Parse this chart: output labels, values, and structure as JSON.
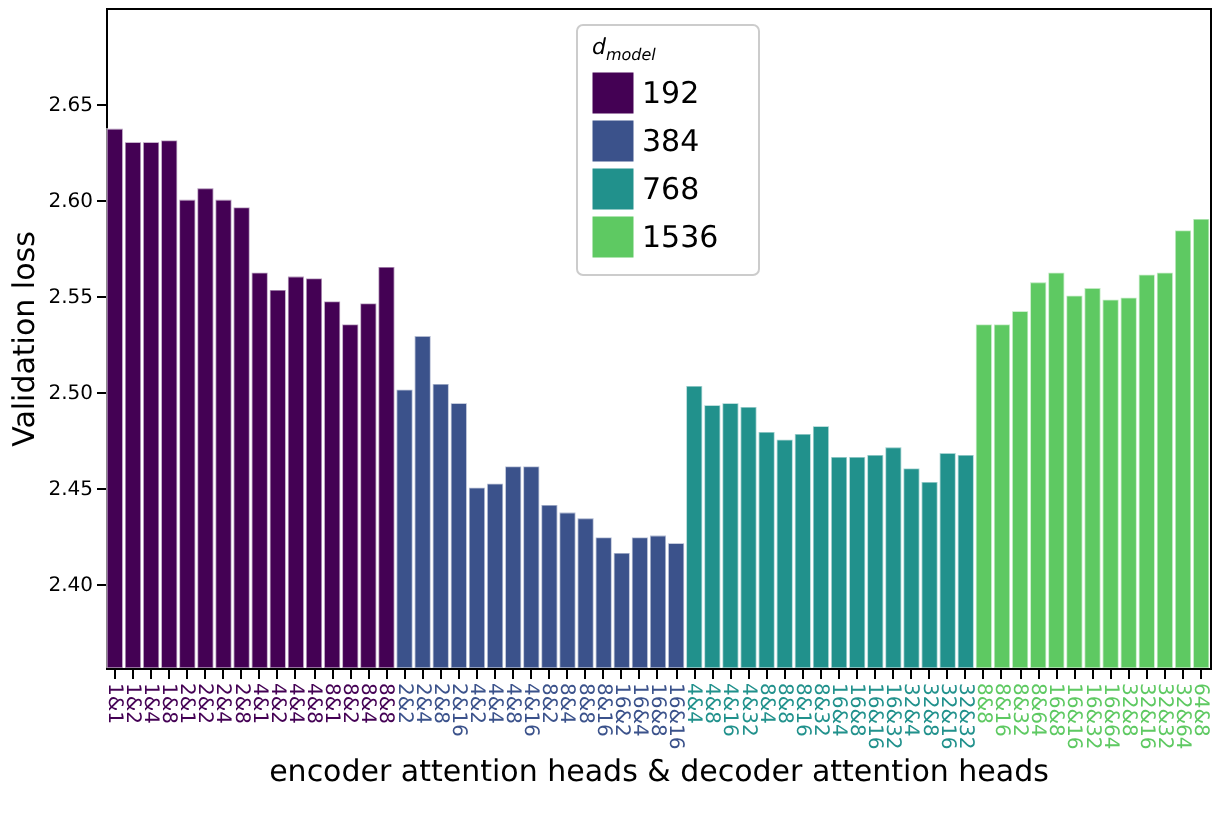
{
  "chart_data": {
    "type": "bar",
    "xlabel": "encoder attention heads & decoder attention heads",
    "ylabel": "Validation loss",
    "legend_title": "d$_{model}$",
    "categories": [
      "1&1",
      "1&2",
      "1&4",
      "1&8",
      "2&1",
      "2&2",
      "2&4",
      "2&8",
      "4&1",
      "4&2",
      "4&4",
      "4&8",
      "8&1",
      "8&2",
      "8&4",
      "8&8",
      "2&2",
      "2&4",
      "2&8",
      "2&16",
      "4&2",
      "4&4",
      "4&8",
      "4&16",
      "8&2",
      "8&4",
      "8&8",
      "8&16",
      "16&2",
      "16&4",
      "16&8",
      "16&16",
      "4&4",
      "4&8",
      "4&16",
      "4&32",
      "8&4",
      "8&8",
      "8&16",
      "8&32",
      "16&4",
      "16&8",
      "16&16",
      "16&32",
      "32&4",
      "32&8",
      "32&16",
      "32&32",
      "8&8",
      "8&16",
      "8&32",
      "8&64",
      "16&8",
      "16&16",
      "16&32",
      "16&64",
      "32&8",
      "32&16",
      "32&32",
      "32&64",
      "64&8"
    ],
    "series": [
      {
        "name": "192",
        "color": "#440154",
        "values": [
          2.637,
          2.63,
          2.63,
          2.631,
          2.6,
          2.606,
          2.6,
          2.596,
          2.562,
          2.553,
          2.56,
          2.559,
          2.547,
          2.535,
          2.546,
          2.565,
          null,
          null,
          null,
          null,
          null,
          null,
          null,
          null,
          null,
          null,
          null,
          null,
          null,
          null,
          null,
          null,
          null,
          null,
          null,
          null,
          null,
          null,
          null,
          null,
          null,
          null,
          null,
          null,
          null,
          null,
          null,
          null,
          null,
          null,
          null,
          null,
          null,
          null,
          null,
          null,
          null,
          null,
          null,
          null,
          null
        ]
      },
      {
        "name": "384",
        "color": "#3b528b",
        "values": [
          null,
          null,
          null,
          null,
          null,
          null,
          null,
          null,
          null,
          null,
          null,
          null,
          null,
          null,
          null,
          null,
          2.501,
          2.529,
          2.504,
          2.494,
          2.45,
          2.452,
          2.461,
          2.461,
          2.441,
          2.437,
          2.434,
          2.424,
          2.416,
          2.424,
          2.425,
          2.421,
          null,
          null,
          null,
          null,
          null,
          null,
          null,
          null,
          null,
          null,
          null,
          null,
          null,
          null,
          null,
          null,
          null,
          null,
          null,
          null,
          null,
          null,
          null,
          null,
          null,
          null,
          null,
          null,
          null
        ]
      },
      {
        "name": "768",
        "color": "#21918c",
        "values": [
          null,
          null,
          null,
          null,
          null,
          null,
          null,
          null,
          null,
          null,
          null,
          null,
          null,
          null,
          null,
          null,
          null,
          null,
          null,
          null,
          null,
          null,
          null,
          null,
          null,
          null,
          null,
          null,
          null,
          null,
          null,
          null,
          2.503,
          2.493,
          2.494,
          2.492,
          2.479,
          2.475,
          2.478,
          2.482,
          2.466,
          2.466,
          2.467,
          2.471,
          2.46,
          2.453,
          2.468,
          2.467,
          null,
          null,
          null,
          null,
          null,
          null,
          null,
          null,
          null,
          null,
          null,
          null,
          null
        ]
      },
      {
        "name": "1536",
        "color": "#5ec962",
        "values": [
          null,
          null,
          null,
          null,
          null,
          null,
          null,
          null,
          null,
          null,
          null,
          null,
          null,
          null,
          null,
          null,
          null,
          null,
          null,
          null,
          null,
          null,
          null,
          null,
          null,
          null,
          null,
          null,
          null,
          null,
          null,
          null,
          null,
          null,
          null,
          null,
          null,
          null,
          null,
          null,
          null,
          null,
          null,
          null,
          null,
          null,
          null,
          null,
          2.535,
          2.535,
          2.542,
          2.557,
          2.562,
          2.55,
          2.554,
          2.548,
          2.549,
          2.561,
          2.562,
          2.584,
          2.59
        ]
      }
    ],
    "ylim": [
      2.356,
      2.7
    ],
    "yticks": [
      {
        "value": 2.4,
        "label": "2.40"
      },
      2.45,
      {
        "value": 2.5,
        "label": "2.50"
      },
      2.55,
      {
        "value": 2.6,
        "label": "2.60"
      },
      2.65
    ],
    "grid": false,
    "legend": "top"
  }
}
